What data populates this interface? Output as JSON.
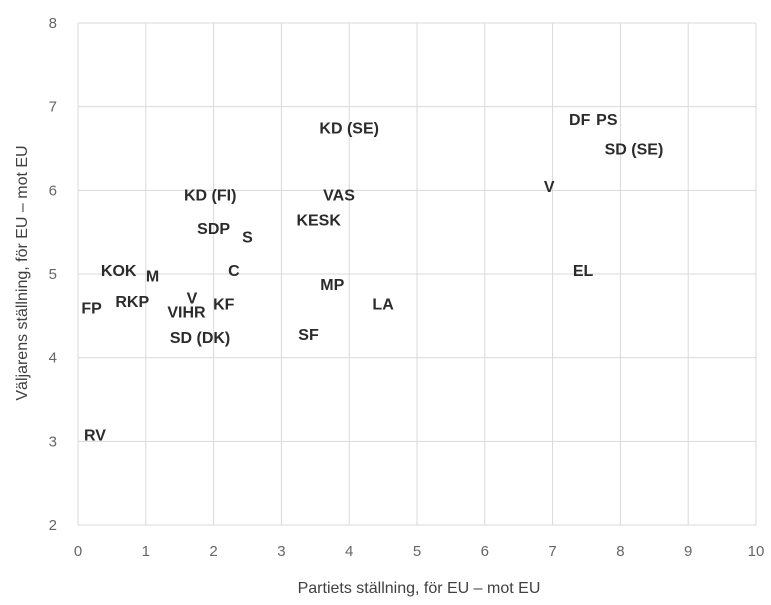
{
  "chart_data": {
    "type": "scatter",
    "title": "",
    "xlabel": "Partiets ställning, för EU – mot EU",
    "ylabel": "Väljarens ställning, för EU – mot EU",
    "xlim": [
      0,
      10
    ],
    "ylim": [
      2,
      8
    ],
    "xticks": [
      0,
      1,
      2,
      3,
      4,
      5,
      6,
      7,
      8,
      9,
      10
    ],
    "yticks": [
      2,
      3,
      4,
      5,
      6,
      7,
      8
    ],
    "grid": true,
    "legend": "none",
    "points": [
      {
        "label": "KD (SE)",
        "x": 4.0,
        "y": 6.75
      },
      {
        "label": "DF",
        "x": 7.4,
        "y": 6.85
      },
      {
        "label": "PS",
        "x": 7.8,
        "y": 6.85
      },
      {
        "label": "SD (SE)",
        "x": 8.2,
        "y": 6.5
      },
      {
        "label": "V",
        "x": 6.95,
        "y": 6.05
      },
      {
        "label": "KD (FI)",
        "x": 1.95,
        "y": 5.95
      },
      {
        "label": "VAS",
        "x": 3.85,
        "y": 5.95
      },
      {
        "label": "KESK",
        "x": 3.55,
        "y": 5.65
      },
      {
        "label": "SDP",
        "x": 2.0,
        "y": 5.55
      },
      {
        "label": "S",
        "x": 2.5,
        "y": 5.45
      },
      {
        "label": "KOK",
        "x": 0.6,
        "y": 5.05
      },
      {
        "label": "M",
        "x": 1.1,
        "y": 4.98
      },
      {
        "label": "C",
        "x": 2.3,
        "y": 5.05
      },
      {
        "label": "EL",
        "x": 7.45,
        "y": 5.05
      },
      {
        "label": "MP",
        "x": 3.75,
        "y": 4.88
      },
      {
        "label": "V",
        "x": 1.68,
        "y": 4.72
      },
      {
        "label": "KF",
        "x": 2.15,
        "y": 4.65
      },
      {
        "label": "RKP",
        "x": 0.8,
        "y": 4.68
      },
      {
        "label": "LA",
        "x": 4.5,
        "y": 4.65
      },
      {
        "label": "FP",
        "x": 0.2,
        "y": 4.6
      },
      {
        "label": "VIHR",
        "x": 1.6,
        "y": 4.55
      },
      {
        "label": "SD (DK)",
        "x": 1.8,
        "y": 4.25
      },
      {
        "label": "SF",
        "x": 3.4,
        "y": 4.28
      },
      {
        "label": "RV",
        "x": 0.25,
        "y": 3.08
      }
    ]
  }
}
